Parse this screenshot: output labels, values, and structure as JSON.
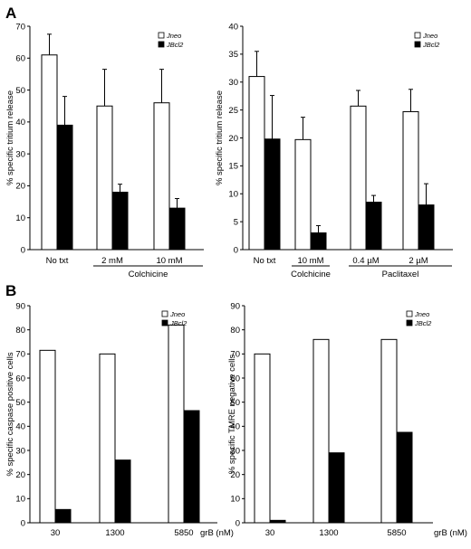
{
  "panels": {
    "a": "A",
    "b": "B"
  },
  "chart_data": [
    {
      "type": "bar",
      "panel": "A",
      "ylabel": "% specific tritium release",
      "ylim": [
        0,
        70
      ],
      "yticks": [
        0,
        10,
        20,
        30,
        40,
        50,
        60,
        70
      ],
      "categories": [
        "No txt",
        "2 mM",
        "10 mM"
      ],
      "groups": [
        {
          "label": "Colchicine",
          "categories": [
            "2 mM",
            "10 mM"
          ]
        }
      ],
      "series": [
        {
          "name": "Jneo",
          "fill": "#ffffff",
          "values": [
            61,
            45,
            46
          ],
          "errors": [
            6.5,
            11.5,
            10.5
          ]
        },
        {
          "name": "JBcl2",
          "fill": "#000000",
          "values": [
            39,
            18,
            13
          ],
          "errors": [
            9,
            2.5,
            3
          ]
        }
      ],
      "legend": "top-right",
      "grid": false
    },
    {
      "type": "bar",
      "panel": "A",
      "ylabel": "% specific tritium release",
      "ylim": [
        0,
        40
      ],
      "yticks": [
        0,
        5,
        10,
        15,
        20,
        25,
        30,
        35,
        40
      ],
      "categories": [
        "No txt",
        "10 mM",
        "0.4 µM",
        "2 µM"
      ],
      "groups": [
        {
          "label": "Colchicine",
          "categories": [
            "10 mM"
          ]
        },
        {
          "label": "Paclitaxel",
          "categories": [
            "0.4 µM",
            "2 µM"
          ]
        }
      ],
      "series": [
        {
          "name": "Jneo",
          "fill": "#ffffff",
          "values": [
            31,
            19.7,
            25.7,
            24.7
          ],
          "errors": [
            4.5,
            4,
            2.8,
            4
          ]
        },
        {
          "name": "JBcl2",
          "fill": "#000000",
          "values": [
            19.8,
            3,
            8.5,
            8
          ],
          "errors": [
            7.8,
            1.3,
            1.2,
            3.8
          ]
        }
      ],
      "legend": "top-right",
      "grid": false
    },
    {
      "type": "bar",
      "panel": "B",
      "ylabel": "% specific caspase positive cells",
      "xlabel": "grB (nM)",
      "ylim": [
        0,
        90
      ],
      "yticks": [
        0,
        10,
        20,
        30,
        40,
        50,
        60,
        70,
        80,
        90
      ],
      "categories": [
        "30",
        "1300",
        "5850"
      ],
      "series": [
        {
          "name": "Jneo",
          "fill": "#ffffff",
          "values": [
            71.5,
            70,
            82
          ]
        },
        {
          "name": "JBcl2",
          "fill": "#000000",
          "values": [
            5.5,
            26,
            46.5
          ]
        }
      ],
      "legend": "top-right",
      "grid": false
    },
    {
      "type": "bar",
      "panel": "B",
      "ylabel": "% specific TMRE negative cells",
      "xlabel": "grB (nM)",
      "ylim": [
        0,
        90
      ],
      "yticks": [
        0,
        10,
        20,
        30,
        40,
        50,
        60,
        70,
        80,
        90
      ],
      "categories": [
        "30",
        "1300",
        "5850"
      ],
      "series": [
        {
          "name": "Jneo",
          "fill": "#ffffff",
          "values": [
            70,
            76,
            76
          ]
        },
        {
          "name": "JBcl2",
          "fill": "#000000",
          "values": [
            1,
            29,
            37.5
          ]
        }
      ],
      "legend": "top-right",
      "grid": false
    }
  ]
}
